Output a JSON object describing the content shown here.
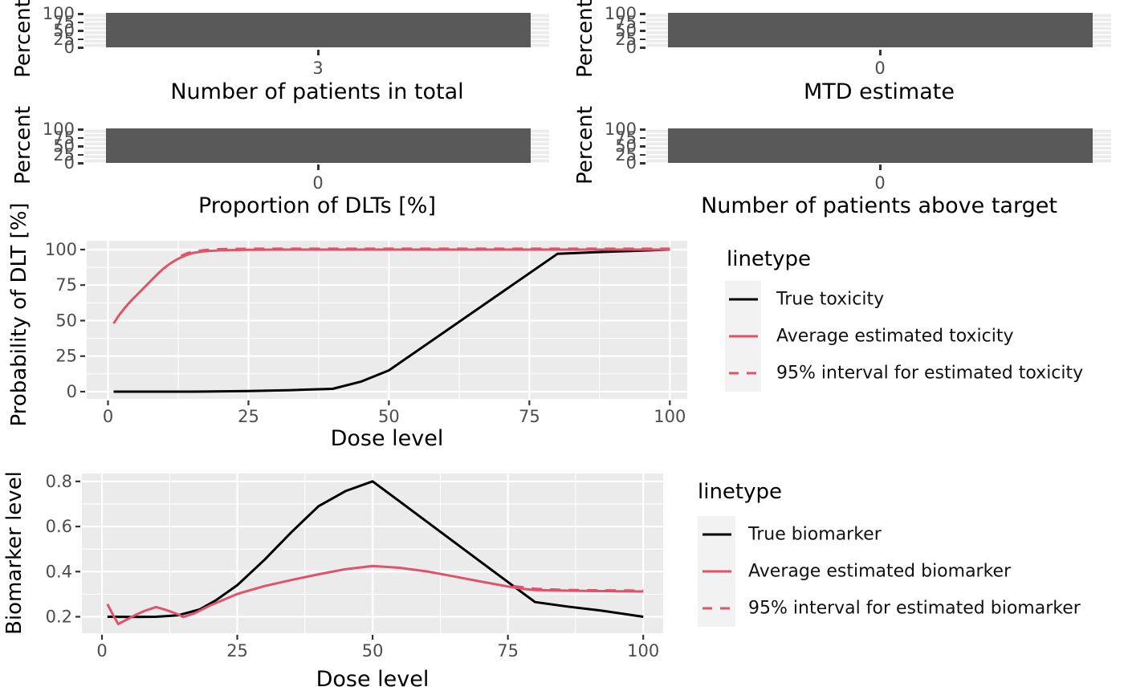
{
  "palette": {
    "black": "#000000",
    "red": "#DF536B",
    "bar_fill": "#595959",
    "panel_bg": "#EBEBEB",
    "grid": "#FFFFFF",
    "tick_mark": "#333333",
    "tick_text": "#4D4D4D",
    "legend_key_bg": "#F2F2F2"
  },
  "chart_data": [
    {
      "type": "bar",
      "id": "patients_total",
      "ylabel": "Percent",
      "xlabel": "Number of patients in total",
      "y_ticks": [
        "100",
        "75",
        "50",
        "25",
        "0"
      ],
      "categories": [
        "3"
      ],
      "values": [
        100
      ]
    },
    {
      "type": "bar",
      "id": "mtd_estimate",
      "ylabel": "Percent",
      "xlabel": "MTD estimate",
      "y_ticks": [
        "100",
        "75",
        "50",
        "25",
        "0"
      ],
      "categories": [
        "0"
      ],
      "values": [
        100
      ]
    },
    {
      "type": "bar",
      "id": "dlt_proportion",
      "ylabel": "Percent",
      "xlabel": "Proportion of DLTs [%]",
      "y_ticks": [
        "100",
        "75",
        "50",
        "25",
        "0"
      ],
      "categories": [
        "0"
      ],
      "values": [
        100
      ]
    },
    {
      "type": "bar",
      "id": "patients_above_target",
      "ylabel": "Percent",
      "xlabel": "Number of patients above target",
      "y_ticks": [
        "100",
        "75",
        "50",
        "25",
        "0"
      ],
      "categories": [
        "0"
      ],
      "values": [
        100
      ]
    },
    {
      "type": "line",
      "id": "toxicity",
      "ylabel": "Probability of DLT [%]",
      "xlabel": "Dose level",
      "xlim": [
        -3.79,
        103.1
      ],
      "ylim": [
        -5.08,
        106.2
      ],
      "x_tick_values": [
        0,
        25,
        50,
        75,
        100
      ],
      "x_ticks": [
        "0",
        "25",
        "50",
        "75",
        "100"
      ],
      "y_tick_values": [
        0,
        25,
        50,
        75,
        100
      ],
      "y_ticks": [
        "0",
        "25",
        "50",
        "75",
        "100"
      ],
      "x_minor": [
        12.5,
        37.5,
        62.5,
        87.5
      ],
      "y_minor": [
        12.5,
        37.5,
        62.5,
        87.5
      ],
      "legend": {
        "title": "linetype",
        "entries": [
          {
            "label": "True toxicity",
            "color": "#000000",
            "dash": false
          },
          {
            "label": "Average estimated toxicity",
            "color": "#DF536B",
            "dash": false
          },
          {
            "label": "95% interval for estimated toxicity",
            "color": "#DF536B",
            "dash": true
          }
        ]
      },
      "series": [
        {
          "name": "True toxicity",
          "color": "#000000",
          "dash": false,
          "points": [
            [
              1,
              0
            ],
            [
              15,
              0
            ],
            [
              25,
              0.4
            ],
            [
              32,
              1
            ],
            [
              40,
              2
            ],
            [
              45,
              7
            ],
            [
              50,
              15
            ],
            [
              80,
              97
            ],
            [
              86,
              98
            ],
            [
              93,
              99
            ],
            [
              100,
              100
            ]
          ]
        },
        {
          "name": "Average estimated toxicity",
          "color": "#DF536B",
          "dash": false,
          "points": [
            [
              1,
              48
            ],
            [
              2,
              54
            ],
            [
              3,
              59
            ],
            [
              4,
              63.5
            ],
            [
              5,
              67.5
            ],
            [
              6,
              71.5
            ],
            [
              7,
              75.5
            ],
            [
              8,
              79.5
            ],
            [
              9,
              83.5
            ],
            [
              10,
              87
            ],
            [
              11,
              90
            ],
            [
              12,
              92.5
            ],
            [
              13,
              94.5
            ],
            [
              14,
              96.2
            ],
            [
              15,
              97.5
            ],
            [
              17,
              98.8
            ],
            [
              20,
              99.5
            ],
            [
              25,
              99.9
            ],
            [
              30,
              100
            ],
            [
              100,
              100
            ]
          ]
        },
        {
          "name": "95% interval for estimated toxicity",
          "color": "#DF536B",
          "dash": true,
          "points": [
            [
              13,
              95.5
            ],
            [
              14,
              97.2
            ],
            [
              15,
              98.5
            ],
            [
              17,
              99.6
            ],
            [
              20,
              100.3
            ],
            [
              25,
              100.6
            ],
            [
              100,
              100.6
            ]
          ]
        }
      ]
    },
    {
      "type": "line",
      "id": "biomarker",
      "ylabel": "Biomarker level",
      "xlabel": "Dose level",
      "xlim": [
        -3.71,
        103.68
      ],
      "ylim": [
        0.127,
        0.835
      ],
      "x_tick_values": [
        0,
        25,
        50,
        75,
        100
      ],
      "x_ticks": [
        "0",
        "25",
        "50",
        "75",
        "100"
      ],
      "y_tick_values": [
        0.8,
        0.6,
        0.4,
        0.2
      ],
      "y_ticks": [
        "0.8",
        "0.6",
        "0.4",
        "0.2"
      ],
      "x_minor": [
        12.5,
        37.5,
        62.5,
        87.5
      ],
      "y_minor": [
        0.3,
        0.5,
        0.7
      ],
      "legend": {
        "title": "linetype",
        "entries": [
          {
            "label": "True biomarker",
            "color": "#000000",
            "dash": false
          },
          {
            "label": "Average estimated biomarker",
            "color": "#DF536B",
            "dash": false
          },
          {
            "label": "95% interval for estimated biomarker",
            "color": "#DF536B",
            "dash": true
          }
        ]
      },
      "series": [
        {
          "name": "True biomarker",
          "color": "#000000",
          "dash": false,
          "points": [
            [
              1,
              0.2
            ],
            [
              6,
              0.199
            ],
            [
              10,
              0.2
            ],
            [
              14,
              0.206
            ],
            [
              18,
              0.232
            ],
            [
              21,
              0.272
            ],
            [
              25,
              0.34
            ],
            [
              30,
              0.452
            ],
            [
              35,
              0.575
            ],
            [
              40,
              0.69
            ],
            [
              45,
              0.757
            ],
            [
              50,
              0.8
            ],
            [
              60,
              0.622
            ],
            [
              70,
              0.443
            ],
            [
              75,
              0.354
            ],
            [
              80,
              0.265
            ],
            [
              86,
              0.245
            ],
            [
              92,
              0.228
            ],
            [
              100,
              0.2
            ]
          ]
        },
        {
          "name": "Average estimated biomarker",
          "color": "#DF536B",
          "dash": false,
          "points": [
            [
              1,
              0.256
            ],
            [
              2,
              0.21
            ],
            [
              3,
              0.168
            ],
            [
              4,
              0.18
            ],
            [
              6,
              0.206
            ],
            [
              8,
              0.227
            ],
            [
              10,
              0.243
            ],
            [
              12,
              0.229
            ],
            [
              14,
              0.211
            ],
            [
              15,
              0.199
            ],
            [
              17,
              0.214
            ],
            [
              20,
              0.25
            ],
            [
              25,
              0.301
            ],
            [
              30,
              0.336
            ],
            [
              35,
              0.363
            ],
            [
              40,
              0.388
            ],
            [
              45,
              0.411
            ],
            [
              50,
              0.425
            ],
            [
              55,
              0.417
            ],
            [
              60,
              0.401
            ],
            [
              65,
              0.379
            ],
            [
              70,
              0.356
            ],
            [
              75,
              0.334
            ],
            [
              78,
              0.323
            ],
            [
              80,
              0.318
            ],
            [
              85,
              0.316
            ],
            [
              90,
              0.314
            ],
            [
              95,
              0.313
            ],
            [
              100,
              0.312
            ]
          ]
        },
        {
          "name": "95% interval for estimated biomarker",
          "color": "#DF536B",
          "dash": true,
          "points": [
            [
              76,
              0.336
            ],
            [
              80,
              0.324
            ],
            [
              85,
              0.319
            ],
            [
              92,
              0.317
            ],
            [
              100,
              0.316
            ]
          ]
        }
      ]
    }
  ]
}
